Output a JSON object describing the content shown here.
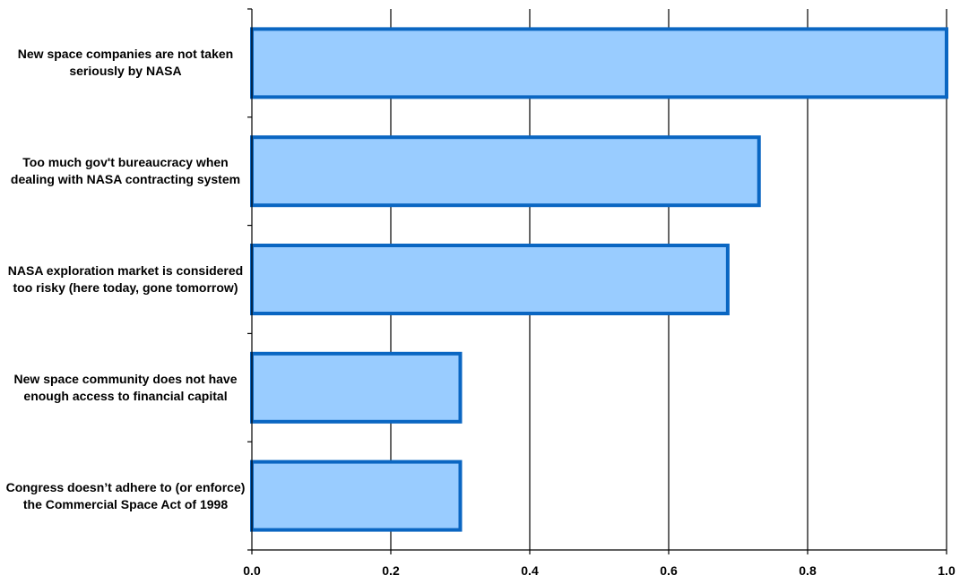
{
  "chart_data": {
    "type": "bar",
    "orientation": "horizontal",
    "categories": [
      "New space companies are not taken seriously by NASA",
      "Too much gov't bureaucracy when dealing with NASA contracting system",
      "NASA exploration market is considered too risky (here today, gone tomorrow)",
      "New space community does not have enough access to financial capital",
      "Congress doesn’t adhere to (or enforce) the Commercial Space Act of 1998"
    ],
    "values": [
      1.0,
      0.73,
      0.685,
      0.3,
      0.3
    ],
    "xlim": [
      0,
      1
    ],
    "x_ticks": [
      "0.0",
      "0.2",
      "0.4",
      "0.6",
      "0.8",
      "1.0"
    ],
    "grid": "vertical",
    "colors": {
      "bar_fill": "#99ccff",
      "bar_stroke": "#0a66c2",
      "grid": "#000000",
      "axis": "#000000"
    }
  }
}
